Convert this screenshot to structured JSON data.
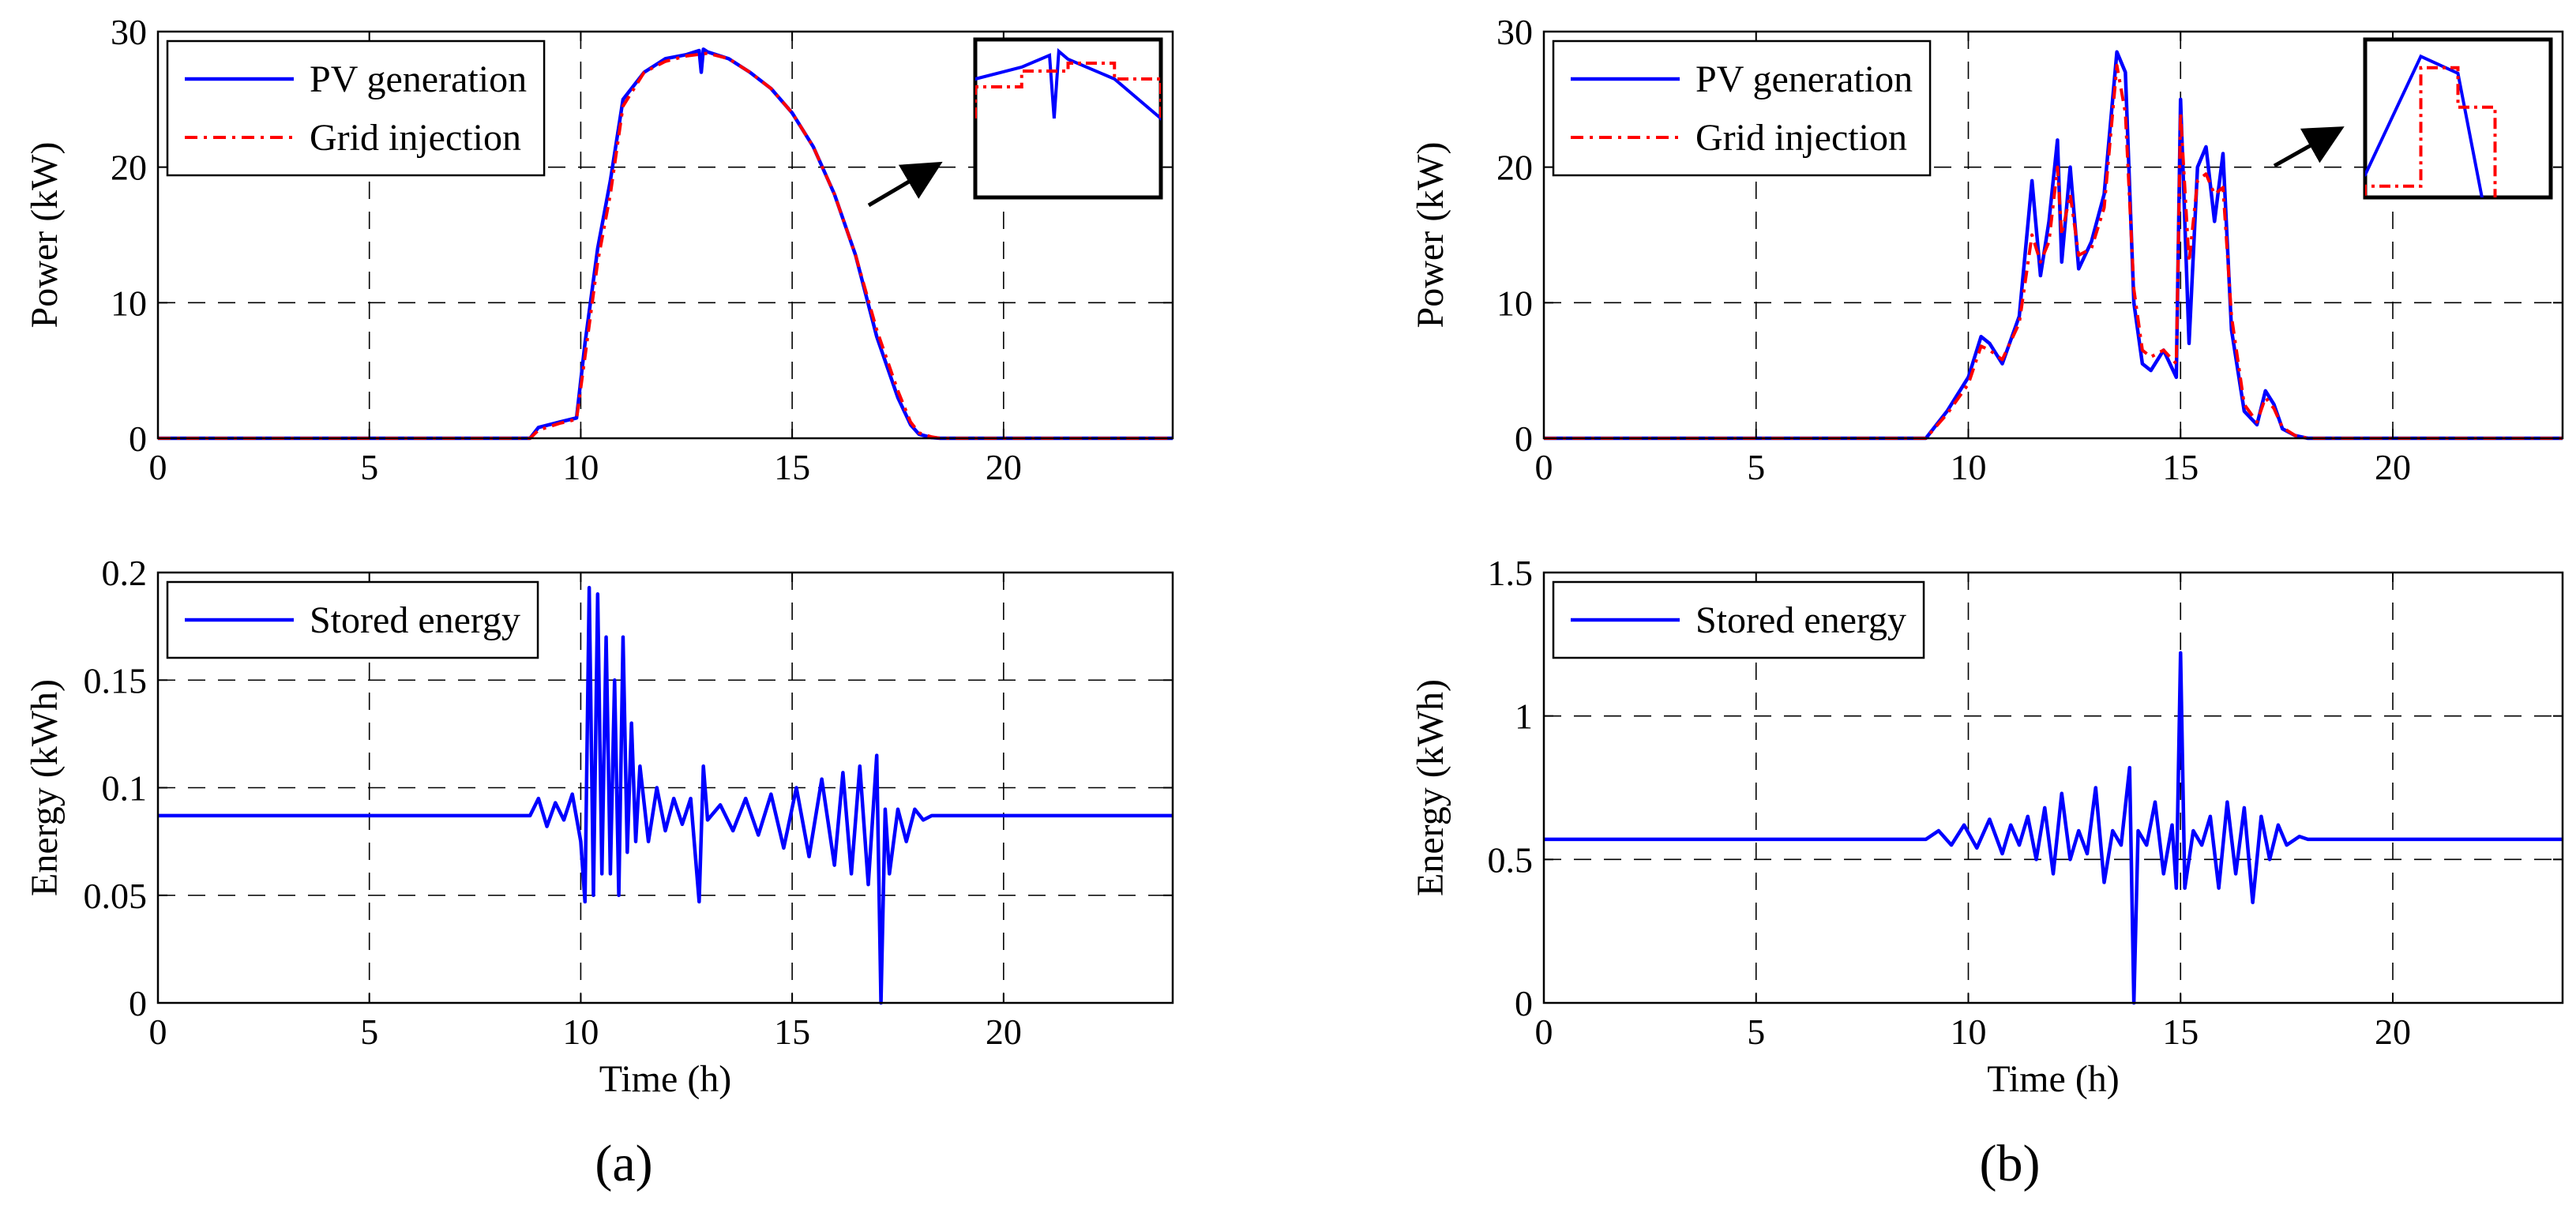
{
  "figure": {
    "panel_labels": [
      "(a)",
      "(b)"
    ]
  },
  "chart_data": [
    {
      "id": "a-power",
      "type": "line",
      "ylabel": "Power (kW)",
      "xlabel": "",
      "xlim": [
        0,
        24
      ],
      "ylim": [
        0,
        30
      ],
      "xticks": [
        0,
        5,
        10,
        15,
        20
      ],
      "yticks": [
        0,
        10,
        20,
        30
      ],
      "grid": true,
      "legend_position": "top-left",
      "inset": "zoom",
      "series": [
        {
          "name": "PV generation",
          "color": "#0000ff",
          "style": "solid",
          "x": [
            0,
            8.8,
            9.0,
            9.5,
            9.9,
            10.1,
            10.4,
            10.7,
            11.0,
            11.5,
            12.0,
            12.5,
            12.8,
            12.85,
            12.9,
            13.0,
            13.5,
            14.0,
            14.5,
            15.0,
            15.5,
            16.0,
            16.5,
            17.0,
            17.5,
            17.8,
            18.0,
            18.3,
            18.5,
            24
          ],
          "values": [
            0,
            0,
            0.8,
            1.2,
            1.5,
            7,
            14,
            19,
            25,
            27,
            28,
            28.3,
            28.6,
            27,
            28.7,
            28.5,
            28,
            27,
            25.8,
            24,
            21.5,
            18,
            13.5,
            7.5,
            3,
            1,
            0.3,
            0.05,
            0,
            0
          ]
        },
        {
          "name": "Grid injection",
          "color": "#ff0000",
          "style": "dashdot",
          "x": [
            0,
            8.8,
            9.0,
            9.5,
            9.9,
            10.1,
            10.4,
            10.7,
            11.0,
            11.5,
            12.0,
            12.5,
            13.0,
            13.5,
            14.0,
            14.5,
            15.0,
            15.5,
            16.0,
            16.5,
            17.0,
            17.5,
            17.8,
            18.0,
            18.3,
            18.5,
            24
          ],
          "values": [
            0,
            0,
            0.6,
            1.1,
            1.4,
            6,
            13,
            18,
            24.5,
            27,
            27.8,
            28.2,
            28.4,
            28,
            27,
            25.8,
            24,
            21.5,
            18,
            13.5,
            8,
            3.5,
            1.2,
            0.4,
            0.1,
            0,
            0
          ]
        }
      ]
    },
    {
      "id": "a-energy",
      "type": "line",
      "ylabel": "Energy (kWh)",
      "xlabel": "Time (h)",
      "xlim": [
        0,
        24
      ],
      "ylim": [
        0,
        0.2
      ],
      "xticks": [
        0,
        5,
        10,
        15,
        20
      ],
      "yticks": [
        0,
        0.05,
        0.1,
        0.15,
        0.2
      ],
      "ytick_labels": [
        "0",
        "0.05",
        "0.1",
        "0.15",
        "0.2"
      ],
      "grid": true,
      "legend_position": "top-left",
      "series": [
        {
          "name": "Stored energy",
          "color": "#0000ff",
          "style": "solid",
          "x": [
            0,
            8.8,
            9.0,
            9.2,
            9.4,
            9.6,
            9.8,
            10.0,
            10.1,
            10.2,
            10.3,
            10.4,
            10.5,
            10.6,
            10.7,
            10.8,
            10.9,
            11.0,
            11.1,
            11.2,
            11.3,
            11.4,
            11.6,
            11.8,
            12.0,
            12.2,
            12.4,
            12.6,
            12.8,
            12.9,
            13.0,
            13.3,
            13.6,
            13.9,
            14.2,
            14.5,
            14.8,
            15.1,
            15.4,
            15.7,
            16.0,
            16.2,
            16.4,
            16.6,
            16.8,
            17.0,
            17.1,
            17.2,
            17.3,
            17.5,
            17.7,
            17.9,
            18.1,
            18.3,
            24
          ],
          "values": [
            0.087,
            0.087,
            0.095,
            0.082,
            0.093,
            0.085,
            0.097,
            0.075,
            0.047,
            0.193,
            0.05,
            0.19,
            0.06,
            0.17,
            0.06,
            0.15,
            0.05,
            0.17,
            0.07,
            0.13,
            0.075,
            0.11,
            0.075,
            0.1,
            0.08,
            0.095,
            0.083,
            0.095,
            0.047,
            0.11,
            0.085,
            0.092,
            0.08,
            0.095,
            0.078,
            0.097,
            0.072,
            0.1,
            0.068,
            0.104,
            0.064,
            0.107,
            0.06,
            0.11,
            0.055,
            0.115,
            0.0,
            0.09,
            0.06,
            0.09,
            0.075,
            0.09,
            0.085,
            0.087,
            0.087
          ]
        }
      ]
    },
    {
      "id": "b-power",
      "type": "line",
      "ylabel": "Power (kW)",
      "xlabel": "",
      "xlim": [
        0,
        24
      ],
      "ylim": [
        0,
        30
      ],
      "xticks": [
        0,
        5,
        10,
        15,
        20
      ],
      "yticks": [
        0,
        10,
        20,
        30
      ],
      "grid": true,
      "legend_position": "top-left",
      "inset": "zoom",
      "series": [
        {
          "name": "PV generation",
          "color": "#0000ff",
          "style": "solid",
          "x": [
            0,
            9.0,
            9.5,
            10.0,
            10.3,
            10.5,
            10.8,
            11.2,
            11.5,
            11.7,
            11.9,
            12.1,
            12.2,
            12.4,
            12.6,
            12.9,
            13.2,
            13.5,
            13.7,
            13.9,
            14.1,
            14.3,
            14.6,
            14.9,
            15.0,
            15.2,
            15.4,
            15.6,
            15.8,
            16.0,
            16.2,
            16.5,
            16.8,
            17.0,
            17.2,
            17.4,
            17.7,
            18.0,
            24
          ],
          "values": [
            0,
            0,
            2,
            4.5,
            7.5,
            7,
            5.5,
            9,
            19,
            12,
            16,
            22,
            13,
            20,
            12.5,
            14.5,
            18,
            28.5,
            27,
            10,
            5.5,
            5,
            6.5,
            4.5,
            25,
            7,
            20,
            21.5,
            16,
            21,
            8,
            2,
            1,
            3.5,
            2.5,
            0.7,
            0.2,
            0,
            0
          ]
        },
        {
          "name": "Grid injection",
          "color": "#ff0000",
          "style": "dashdot",
          "x": [
            0,
            9.0,
            9.5,
            10.0,
            10.3,
            10.5,
            10.8,
            11.2,
            11.5,
            11.7,
            11.9,
            12.1,
            12.2,
            12.4,
            12.6,
            12.9,
            13.2,
            13.5,
            13.7,
            13.9,
            14.1,
            14.3,
            14.6,
            14.9,
            15.0,
            15.2,
            15.4,
            15.6,
            15.8,
            16.0,
            16.2,
            16.5,
            16.8,
            17.0,
            17.2,
            17.4,
            17.7,
            18.0,
            24
          ],
          "values": [
            0,
            0,
            1.8,
            4,
            6.8,
            6.5,
            5.8,
            8.5,
            15,
            13,
            14.5,
            20,
            15,
            18,
            13.5,
            14,
            17,
            27.5,
            24,
            11,
            6.5,
            6,
            6.5,
            5.5,
            24,
            13,
            19,
            19.5,
            18,
            18.5,
            9,
            2.5,
            1.2,
            3,
            2.2,
            0.8,
            0.2,
            0,
            0
          ]
        }
      ]
    },
    {
      "id": "b-energy",
      "type": "line",
      "ylabel": "Energy (kWh)",
      "xlabel": "Time (h)",
      "xlim": [
        0,
        24
      ],
      "ylim": [
        0,
        1.5
      ],
      "xticks": [
        0,
        5,
        10,
        15,
        20
      ],
      "yticks": [
        0,
        0.5,
        1,
        1.5
      ],
      "ytick_labels": [
        "0",
        "0.5",
        "1",
        "1.5"
      ],
      "grid": true,
      "legend_position": "top-left",
      "series": [
        {
          "name": "Stored energy",
          "color": "#0000ff",
          "style": "solid",
          "x": [
            0,
            9.0,
            9.3,
            9.6,
            9.9,
            10.2,
            10.5,
            10.8,
            11.0,
            11.2,
            11.4,
            11.6,
            11.8,
            12.0,
            12.2,
            12.4,
            12.6,
            12.8,
            13.0,
            13.2,
            13.4,
            13.6,
            13.8,
            13.9,
            14.0,
            14.2,
            14.4,
            14.6,
            14.8,
            14.9,
            15.0,
            15.1,
            15.3,
            15.5,
            15.7,
            15.9,
            16.1,
            16.3,
            16.5,
            16.7,
            16.9,
            17.1,
            17.3,
            17.5,
            17.8,
            18.0,
            24
          ],
          "values": [
            0.57,
            0.57,
            0.6,
            0.55,
            0.62,
            0.54,
            0.64,
            0.52,
            0.62,
            0.55,
            0.65,
            0.5,
            0.68,
            0.45,
            0.73,
            0.5,
            0.6,
            0.52,
            0.75,
            0.42,
            0.6,
            0.55,
            0.82,
            0.0,
            0.6,
            0.55,
            0.7,
            0.45,
            0.62,
            0.4,
            1.22,
            0.4,
            0.6,
            0.55,
            0.65,
            0.4,
            0.7,
            0.45,
            0.68,
            0.35,
            0.65,
            0.5,
            0.62,
            0.55,
            0.58,
            0.57,
            0.57
          ]
        }
      ]
    }
  ]
}
